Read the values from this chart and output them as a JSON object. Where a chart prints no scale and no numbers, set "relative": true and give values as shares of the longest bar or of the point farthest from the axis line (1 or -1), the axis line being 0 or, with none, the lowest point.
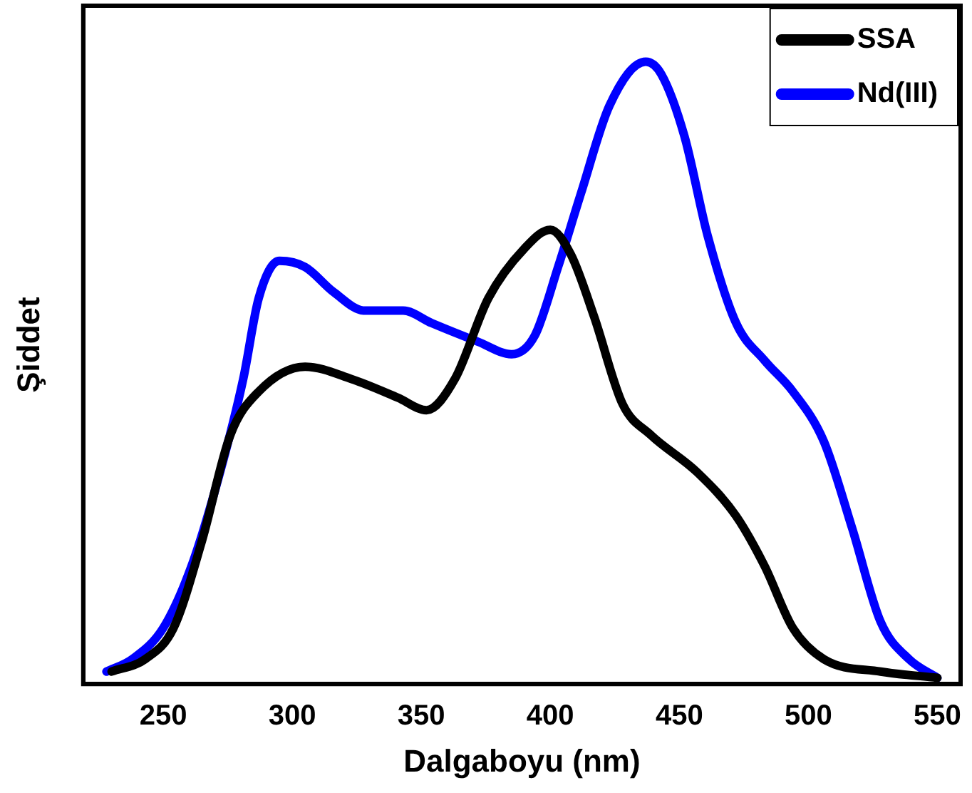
{
  "chart_data": {
    "type": "line",
    "xlabel": "Dalgaboyu (nm)",
    "ylabel": "Şiddet",
    "relative": true,
    "xlim": [
      219,
      559
    ],
    "xticks": [
      250,
      300,
      350,
      400,
      450,
      500,
      550
    ],
    "tick_labels": "x",
    "legend": "top right",
    "grid": false,
    "marker": "none",
    "line_style": "solid",
    "series": [
      {
        "name": "SSA",
        "color": "#000000",
        "x": [
          230,
          243,
          254,
          265,
          276,
          287,
          305,
          323,
          341,
          352,
          363,
          376,
          390,
          400,
          408,
          417,
          428,
          439,
          457,
          472,
          483,
          494,
          506,
          528,
          550
        ],
        "values": [
          0.02,
          0.04,
          0.09,
          0.23,
          0.4,
          0.47,
          0.51,
          0.49,
          0.46,
          0.44,
          0.49,
          0.62,
          0.7,
          0.73,
          0.69,
          0.59,
          0.45,
          0.4,
          0.34,
          0.27,
          0.19,
          0.09,
          0.04,
          0.02,
          0.01
        ]
      },
      {
        "name": "Nd(III)",
        "color": "#0000ff",
        "x": [
          228,
          238,
          250,
          261,
          272,
          281,
          287,
          295,
          305,
          316,
          328,
          343,
          354,
          372,
          385,
          394,
          403,
          412,
          423,
          437,
          443,
          452,
          461,
          472,
          483,
          494,
          506,
          517,
          528,
          539,
          550
        ],
        "values": [
          0.02,
          0.04,
          0.09,
          0.19,
          0.34,
          0.49,
          0.62,
          0.68,
          0.67,
          0.63,
          0.6,
          0.6,
          0.58,
          0.55,
          0.53,
          0.56,
          0.67,
          0.79,
          0.93,
          1,
          0.98,
          0.88,
          0.72,
          0.58,
          0.52,
          0.47,
          0.39,
          0.25,
          0.1,
          0.04,
          0.01
        ]
      }
    ]
  }
}
